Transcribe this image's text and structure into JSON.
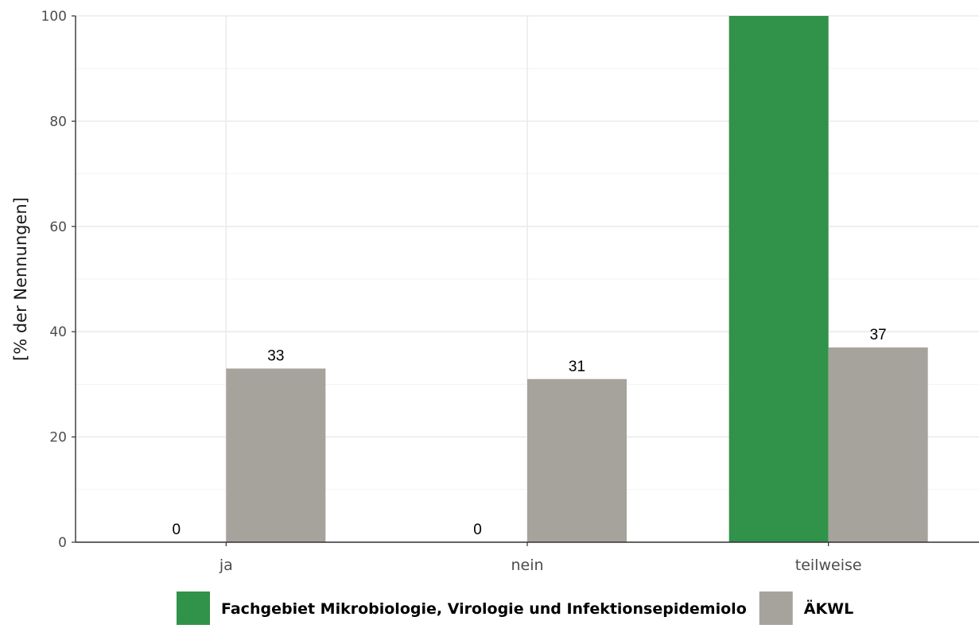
{
  "chart_data": {
    "type": "bar",
    "title": "",
    "xlabel": "",
    "ylabel": "[% der Nennungen]",
    "categories": [
      "ja",
      "nein",
      "teilweise"
    ],
    "series": [
      {
        "name": "Fachgebiet Mikrobiologie, Virologie und Infektionsepidemiolo",
        "color": "#31924a",
        "values": [
          0,
          0,
          100
        ],
        "labels": [
          "0",
          "0",
          ""
        ]
      },
      {
        "name": "ÄKWL",
        "color": "#a6a39c",
        "values": [
          33,
          31,
          37
        ],
        "labels": [
          "33",
          "31",
          "37"
        ]
      }
    ],
    "ylim": [
      0,
      100
    ],
    "yticks": [
      "0",
      "20",
      "40",
      "60",
      "80",
      "100"
    ],
    "grid": true,
    "legend_position": "bottom"
  }
}
